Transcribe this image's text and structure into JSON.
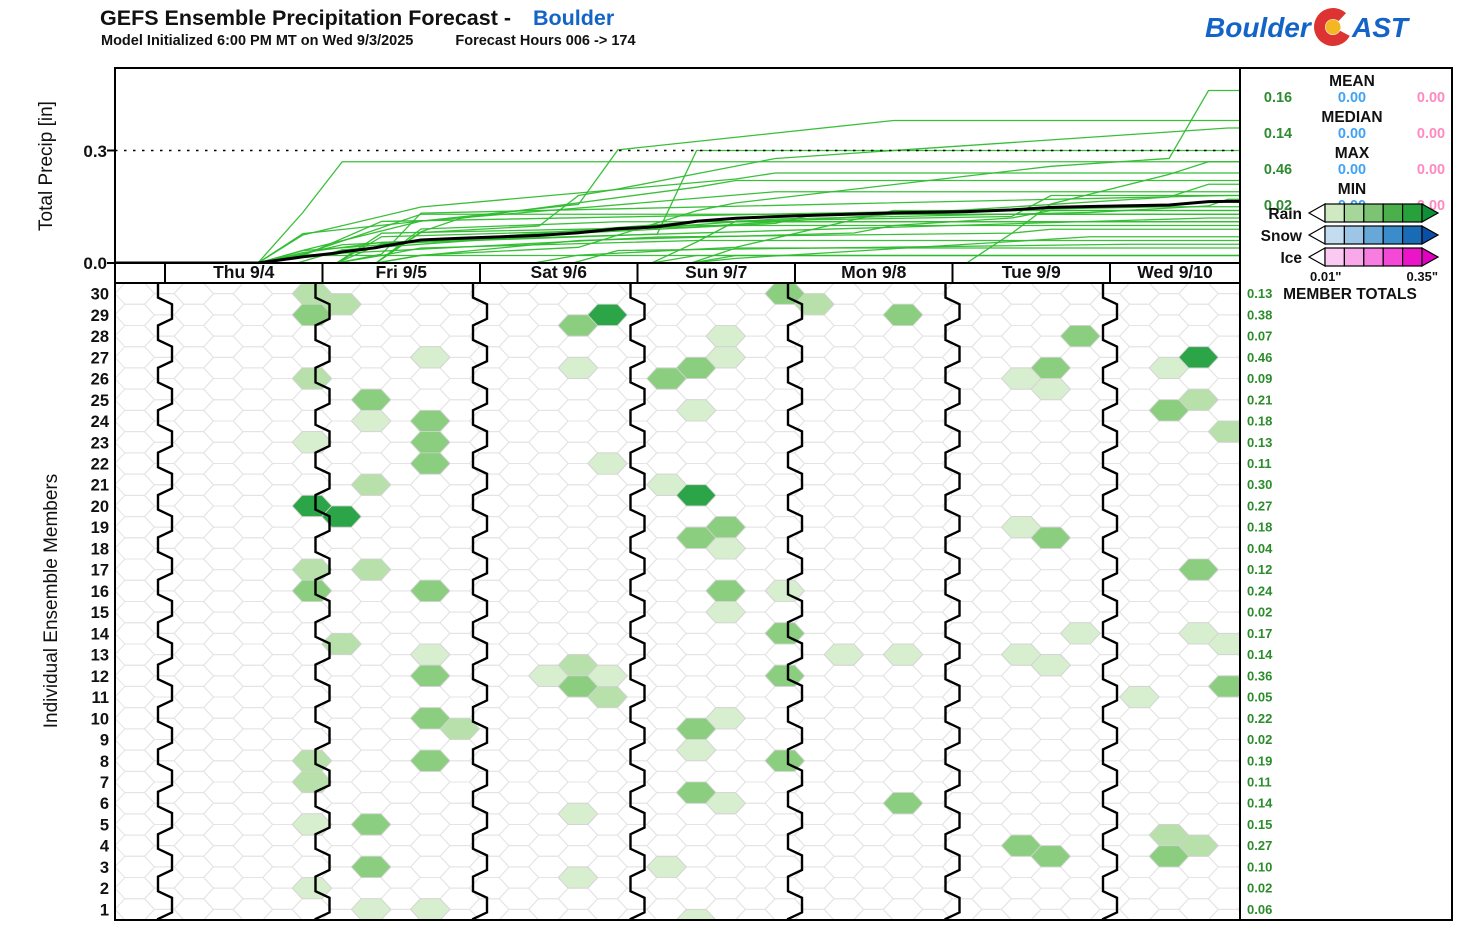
{
  "header": {
    "title": "GEFS Ensemble Precipitation Forecast -",
    "location": "Boulder",
    "subtitle_init": "Model Initialized 6:00 PM MT on Wed 9/3/2025",
    "subtitle_hours": "Forecast Hours 006 -> 174"
  },
  "logo": {
    "part1": "Boulder",
    "part2": "AST"
  },
  "top_chart": {
    "ylabel": "Total Precip [in]",
    "ytick_top": "0.3",
    "ytick_bottom": "0.0"
  },
  "hex_grid": {
    "ylabel": "Individual Ensemble Members",
    "totals_header": "MEMBER TOTALS"
  },
  "stats_panel": {
    "rows": [
      {
        "label": "MEAN",
        "rain": "0.16",
        "snow": "0.00",
        "ice": "0.00"
      },
      {
        "label": "MEDIAN",
        "rain": "0.14",
        "snow": "0.00",
        "ice": "0.00"
      },
      {
        "label": "MAX",
        "rain": "0.46",
        "snow": "0.00",
        "ice": "0.00"
      },
      {
        "label": "MIN",
        "rain": "0.02",
        "snow": "0.00",
        "ice": "0.00"
      }
    ]
  },
  "legend": {
    "rows": [
      {
        "label": "Rain",
        "boxes": [
          "#cfe9c3",
          "#a5d79a",
          "#7cc474",
          "#4bb04c",
          "#27a13b"
        ],
        "arrow": "#0f9038"
      },
      {
        "label": "Snow",
        "boxes": [
          "#c3dcf0",
          "#9dc6e6",
          "#68a8d8",
          "#3a8cca",
          "#1a6bb5"
        ],
        "arrow": "#0b4ea6"
      },
      {
        "label": "Ice",
        "boxes": [
          "#fbc9f1",
          "#f9a9ea",
          "#f77de1",
          "#f449d6",
          "#ec14c9"
        ],
        "arrow": "#e200c0"
      }
    ],
    "min_label": "0.01\"",
    "max_label": "0.35\""
  },
  "colors": {
    "accent_blue": "#1464c8",
    "logo_red": "#dd3333",
    "logo_yellow": "#f2b722",
    "stat_green": "#2e8b30",
    "stat_blue": "#41a3f5",
    "stat_pink": "#ff8ac0",
    "totals_green": "#2c8c2c",
    "ensemble_line": "#2ebc2e",
    "mean_line": "#000000",
    "hex_shades": [
      "#d7eecf",
      "#b7e0ab",
      "#8bce80",
      "#2ca448"
    ],
    "lattice_stroke": "#e4e4e4"
  },
  "chart_data": {
    "type": "ensemble_plume_and_hex_matrix",
    "title": "GEFS Ensemble Precipitation Forecast - Boulder",
    "x_categories": [
      "Thu 9/4",
      "Fri 9/5",
      "Sat 9/6",
      "Sun 9/7",
      "Mon 9/8",
      "Tue 9/9",
      "Wed 9/10"
    ],
    "ylabel": "Total Precip [in]",
    "yticks": [
      0.3,
      0.0
    ],
    "ylim": [
      0,
      0.52
    ],
    "threshold_line": 0.3,
    "grid": "hex",
    "legend_position": "right",
    "stats": {
      "mean": 0.16,
      "median": 0.14,
      "max": 0.46,
      "min": 0.02
    },
    "scale_range_inches": [
      0.01,
      0.35
    ],
    "members": [
      {
        "id": 30,
        "total": 0.13,
        "cells": [
          [
            0,
            3,
            2
          ],
          [
            1,
            0,
            2
          ],
          [
            3,
            3,
            3
          ],
          [
            4,
            0,
            2
          ]
        ]
      },
      {
        "id": 29,
        "total": 0.38,
        "cells": [
          [
            0,
            3,
            3
          ],
          [
            2,
            2,
            3
          ],
          [
            2,
            3,
            4
          ],
          [
            4,
            2,
            3
          ]
        ]
      },
      {
        "id": 28,
        "total": 0.07,
        "cells": [
          [
            3,
            2,
            1
          ],
          [
            5,
            3,
            3
          ]
        ]
      },
      {
        "id": 27,
        "total": 0.46,
        "cells": [
          [
            1,
            2,
            1
          ],
          [
            2,
            2,
            1
          ],
          [
            3,
            1,
            3
          ],
          [
            3,
            2,
            1
          ],
          [
            5,
            2,
            3
          ],
          [
            6,
            1,
            1
          ],
          [
            6,
            2,
            4
          ]
        ]
      },
      {
        "id": 26,
        "total": 0.09,
        "cells": [
          [
            0,
            3,
            2
          ],
          [
            3,
            0,
            3
          ],
          [
            5,
            1,
            1
          ],
          [
            5,
            2,
            1
          ]
        ]
      },
      {
        "id": 25,
        "total": 0.21,
        "cells": [
          [
            1,
            1,
            3
          ],
          [
            3,
            1,
            1
          ],
          [
            6,
            1,
            3
          ],
          [
            6,
            2,
            2
          ]
        ]
      },
      {
        "id": 24,
        "total": 0.18,
        "cells": [
          [
            1,
            1,
            1
          ],
          [
            1,
            2,
            3
          ],
          [
            6,
            3,
            2
          ]
        ]
      },
      {
        "id": 23,
        "total": 0.13,
        "cells": [
          [
            0,
            3,
            1
          ],
          [
            1,
            2,
            3
          ]
        ]
      },
      {
        "id": 22,
        "total": 0.11,
        "cells": [
          [
            1,
            2,
            3
          ],
          [
            2,
            3,
            1
          ]
        ]
      },
      {
        "id": 21,
        "total": 0.3,
        "cells": [
          [
            1,
            1,
            2
          ],
          [
            3,
            0,
            1
          ],
          [
            3,
            1,
            4
          ]
        ]
      },
      {
        "id": 20,
        "total": 0.27,
        "cells": [
          [
            0,
            3,
            4
          ],
          [
            1,
            0,
            4
          ]
        ]
      },
      {
        "id": 19,
        "total": 0.18,
        "cells": [
          [
            3,
            1,
            3
          ],
          [
            3,
            2,
            3
          ],
          [
            5,
            1,
            1
          ],
          [
            5,
            2,
            3
          ]
        ]
      },
      {
        "id": 18,
        "total": 0.04,
        "cells": [
          [
            3,
            2,
            1
          ]
        ]
      },
      {
        "id": 17,
        "total": 0.12,
        "cells": [
          [
            0,
            3,
            2
          ],
          [
            1,
            1,
            2
          ],
          [
            6,
            2,
            3
          ]
        ]
      },
      {
        "id": 16,
        "total": 0.24,
        "cells": [
          [
            0,
            3,
            3
          ],
          [
            1,
            2,
            3
          ],
          [
            3,
            2,
            3
          ],
          [
            3,
            3,
            1
          ]
        ]
      },
      {
        "id": 15,
        "total": 0.02,
        "cells": [
          [
            3,
            2,
            1
          ]
        ]
      },
      {
        "id": 14,
        "total": 0.17,
        "cells": [
          [
            1,
            0,
            2
          ],
          [
            3,
            3,
            3
          ],
          [
            5,
            3,
            1
          ],
          [
            6,
            2,
            1
          ],
          [
            6,
            3,
            1
          ]
        ]
      },
      {
        "id": 13,
        "total": 0.14,
        "cells": [
          [
            1,
            2,
            1
          ],
          [
            2,
            2,
            2
          ],
          [
            4,
            1,
            1
          ],
          [
            4,
            2,
            1
          ],
          [
            5,
            1,
            1
          ],
          [
            5,
            2,
            1
          ]
        ]
      },
      {
        "id": 12,
        "total": 0.36,
        "cells": [
          [
            1,
            2,
            3
          ],
          [
            2,
            1,
            1
          ],
          [
            2,
            2,
            3
          ],
          [
            2,
            3,
            1
          ],
          [
            3,
            3,
            3
          ],
          [
            6,
            3,
            3
          ]
        ]
      },
      {
        "id": 11,
        "total": 0.05,
        "cells": [
          [
            2,
            3,
            2
          ],
          [
            6,
            0,
            1
          ]
        ]
      },
      {
        "id": 10,
        "total": 0.22,
        "cells": [
          [
            1,
            2,
            3
          ],
          [
            1,
            3,
            2
          ],
          [
            3,
            1,
            3
          ],
          [
            3,
            2,
            1
          ]
        ]
      },
      {
        "id": 9,
        "total": 0.02,
        "cells": [
          [
            3,
            1,
            1
          ]
        ]
      },
      {
        "id": 8,
        "total": 0.19,
        "cells": [
          [
            0,
            3,
            2
          ],
          [
            1,
            2,
            3
          ],
          [
            3,
            3,
            3
          ]
        ]
      },
      {
        "id": 7,
        "total": 0.11,
        "cells": [
          [
            0,
            3,
            2
          ],
          [
            3,
            1,
            3
          ]
        ]
      },
      {
        "id": 6,
        "total": 0.14,
        "cells": [
          [
            2,
            2,
            1
          ],
          [
            3,
            2,
            1
          ],
          [
            4,
            2,
            3
          ]
        ]
      },
      {
        "id": 5,
        "total": 0.15,
        "cells": [
          [
            0,
            3,
            1
          ],
          [
            1,
            1,
            3
          ],
          [
            6,
            1,
            2
          ]
        ]
      },
      {
        "id": 4,
        "total": 0.27,
        "cells": [
          [
            5,
            1,
            3
          ],
          [
            5,
            2,
            3
          ],
          [
            6,
            1,
            3
          ],
          [
            6,
            2,
            2
          ]
        ]
      },
      {
        "id": 3,
        "total": 0.1,
        "cells": [
          [
            1,
            1,
            3
          ],
          [
            2,
            2,
            1
          ],
          [
            3,
            0,
            1
          ]
        ]
      },
      {
        "id": 2,
        "total": 0.02,
        "cells": [
          [
            0,
            3,
            1
          ]
        ]
      },
      {
        "id": 1,
        "total": 0.06,
        "cells": [
          [
            1,
            1,
            1
          ],
          [
            1,
            2,
            1
          ],
          [
            3,
            1,
            1
          ]
        ]
      }
    ]
  }
}
